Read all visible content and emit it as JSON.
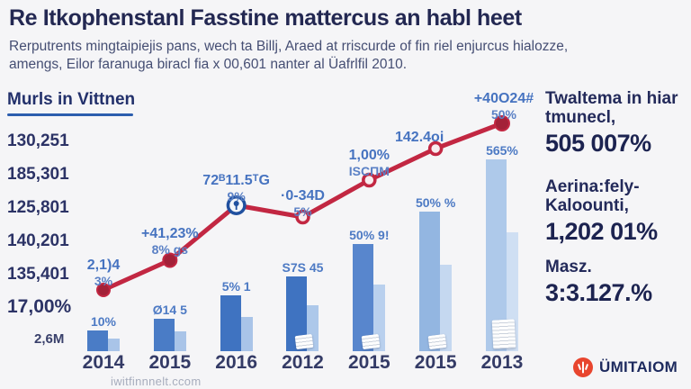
{
  "header": {
    "title": "Re Itkophenstanl Fasstine mattercus an habl heet",
    "subtitle_line1": "Rerputrents mingtaipiejis pans, wech ta Billj, Araed at rriscurde of fin riel enjurcus hialozze,",
    "subtitle_line2": "amengs, Eilor faranuga biracl fia x 00,601 nanter al Üafrlfil 2010."
  },
  "y_axis": {
    "heading": "Murls in Vittnen",
    "labels": [
      "130,251",
      "185,301",
      "125,801",
      "140,201",
      "135,401",
      "17,00%",
      "2,6M"
    ]
  },
  "chart_data": {
    "type": "bar+line combo",
    "categories": [
      "2014",
      "2015",
      "2016",
      "2012",
      "2015",
      "2015",
      "2013"
    ],
    "grid": false,
    "legend": false,
    "bar_series": {
      "name": "bars",
      "values_rel_pct": [
        11,
        17,
        29,
        39,
        56,
        73,
        100
      ],
      "bar_labels": [
        "10%",
        "Ø14 5",
        "5% 1",
        "S7S 45",
        "50% 9!",
        "50% %",
        "565%"
      ]
    },
    "line_series": {
      "name": "trend-line",
      "values_rel_pct": [
        27,
        40,
        64,
        59,
        75,
        89,
        100
      ],
      "point_labels": [
        {
          "main": "2,1)4",
          "sub": "3%"
        },
        {
          "main": "+41,23%",
          "sub": "8% gs"
        },
        {
          "main": "72ᴮ11.5ᵀG",
          "sub": "9%"
        },
        {
          "main": "·0-34D",
          "sub": "5%"
        },
        {
          "main": "1,00%",
          "sub": "ISCΠM"
        },
        {
          "main": "142.4oi",
          "sub": ""
        },
        {
          "main": "+40O24#",
          "sub": "50%"
        }
      ]
    },
    "colors": {
      "line": "#c22742",
      "point_solid": "#a32138",
      "point_hollow_fill": "#f8edef",
      "badge_blue": "#20509f",
      "bars_main": [
        "#4a7cc6",
        "#4a7cc6",
        "#3f73c1",
        "#3f73c1",
        "#5886cd",
        "#93b6e1",
        "#aec9ea"
      ],
      "bars_light": [
        "#a9c4e8",
        "#a9c4e8",
        "#a9c4e8",
        "#adc8ea",
        "#b9d0ee",
        "#c5d8f0",
        "#cfdff3"
      ]
    }
  },
  "right_panel": {
    "stats": [
      {
        "label_line1": "Twaltema in hiar",
        "label_line2": "tmunecl,",
        "value": "505 007%"
      },
      {
        "label_line1": "Aerina:fely-",
        "label_line2": "Kaloounti,",
        "value": "1,202 01%"
      },
      {
        "label_line1": "Masz.",
        "label_line2": "",
        "value": "3:3.127.%"
      }
    ]
  },
  "footer": {
    "watermark": "iwitfinnnelt.ccom",
    "logo_text": "ÜMITAIOM",
    "logo_color": "#e8452e"
  }
}
